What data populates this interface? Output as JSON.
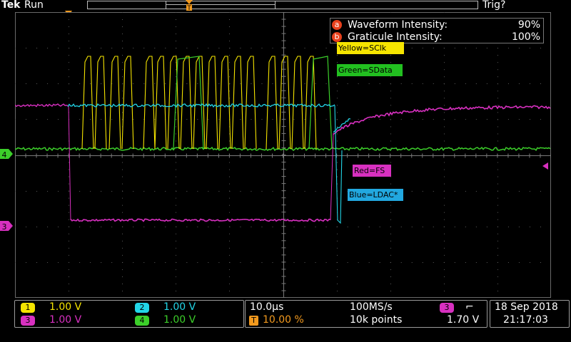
{
  "header": {
    "brand": "Tek",
    "run_state": "Run",
    "trigger_state": "Trig?"
  },
  "markers": {
    "trigger_position": "T",
    "trigger_level_channel": "4",
    "ch3_ground_marker": "3"
  },
  "overlay": {
    "waveform_intensity": {
      "badge": "a",
      "label": "Waveform Intensity:",
      "value": "90%"
    },
    "graticule_intensity": {
      "badge": "b",
      "label": "Graticule Intensity:",
      "value": "100%"
    }
  },
  "annotations": {
    "yellow": "Yellow=SClk",
    "green": "Green=SData",
    "red": "Red=FS",
    "blue": "Blue=LDAC*"
  },
  "channels": [
    {
      "num": "1",
      "scale": "1.00 V",
      "color": "#f5e400"
    },
    {
      "num": "2",
      "scale": "1.00 V",
      "color": "#22d6e8"
    },
    {
      "num": "3",
      "scale": "1.00 V",
      "color": "#d830c0"
    },
    {
      "num": "4",
      "scale": "1.00 V",
      "color": "#3ccf2a"
    }
  ],
  "timebase": {
    "scale": "10.0µs",
    "sample_rate": "100MS/s",
    "trigger_pos_icon": "T",
    "trigger_position": "10.00 %",
    "record_length": "10k points"
  },
  "trigger": {
    "source": "3",
    "slope_icon": "falling-edge-icon",
    "slope_glyph": "⌐",
    "level": "1.70 V"
  },
  "datetime": {
    "date": "18 Sep  2018",
    "time": "21:17:03"
  },
  "colors": {
    "ch1": "#f5e400",
    "ch2": "#22d6e8",
    "ch3": "#d830c0",
    "ch4": "#3ccf2a",
    "trigger_marker": "#f39a1e",
    "overlay_badge": "#e8401c",
    "grid": "#5a5a5a"
  }
}
